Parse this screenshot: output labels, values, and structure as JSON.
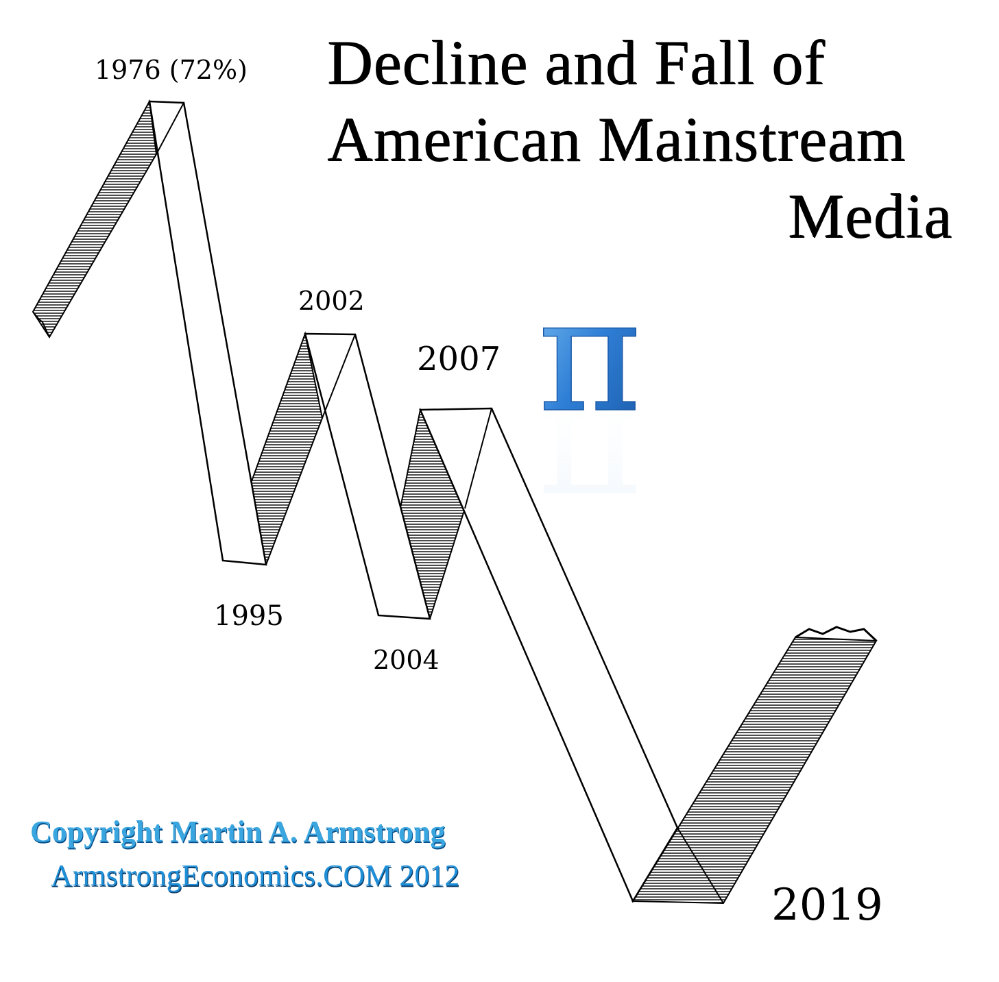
{
  "title": {
    "line1": "Decline and Fall of",
    "line2": "American Mainstream",
    "line3": "Media"
  },
  "labels": {
    "peak_1976": "1976 (72%)",
    "trough_1995": "1995",
    "peak_2002": "2002",
    "trough_2004": "2004",
    "peak_2007": "2007",
    "trough_2019": "2019"
  },
  "pi_symbol": "π",
  "pi_color": "#2f7fd6",
  "copyright": "Copyright Martin A. Armstrong",
  "website": "ArmstrongEconomics.COM 2012",
  "icons": [
    "pi-icon"
  ]
}
